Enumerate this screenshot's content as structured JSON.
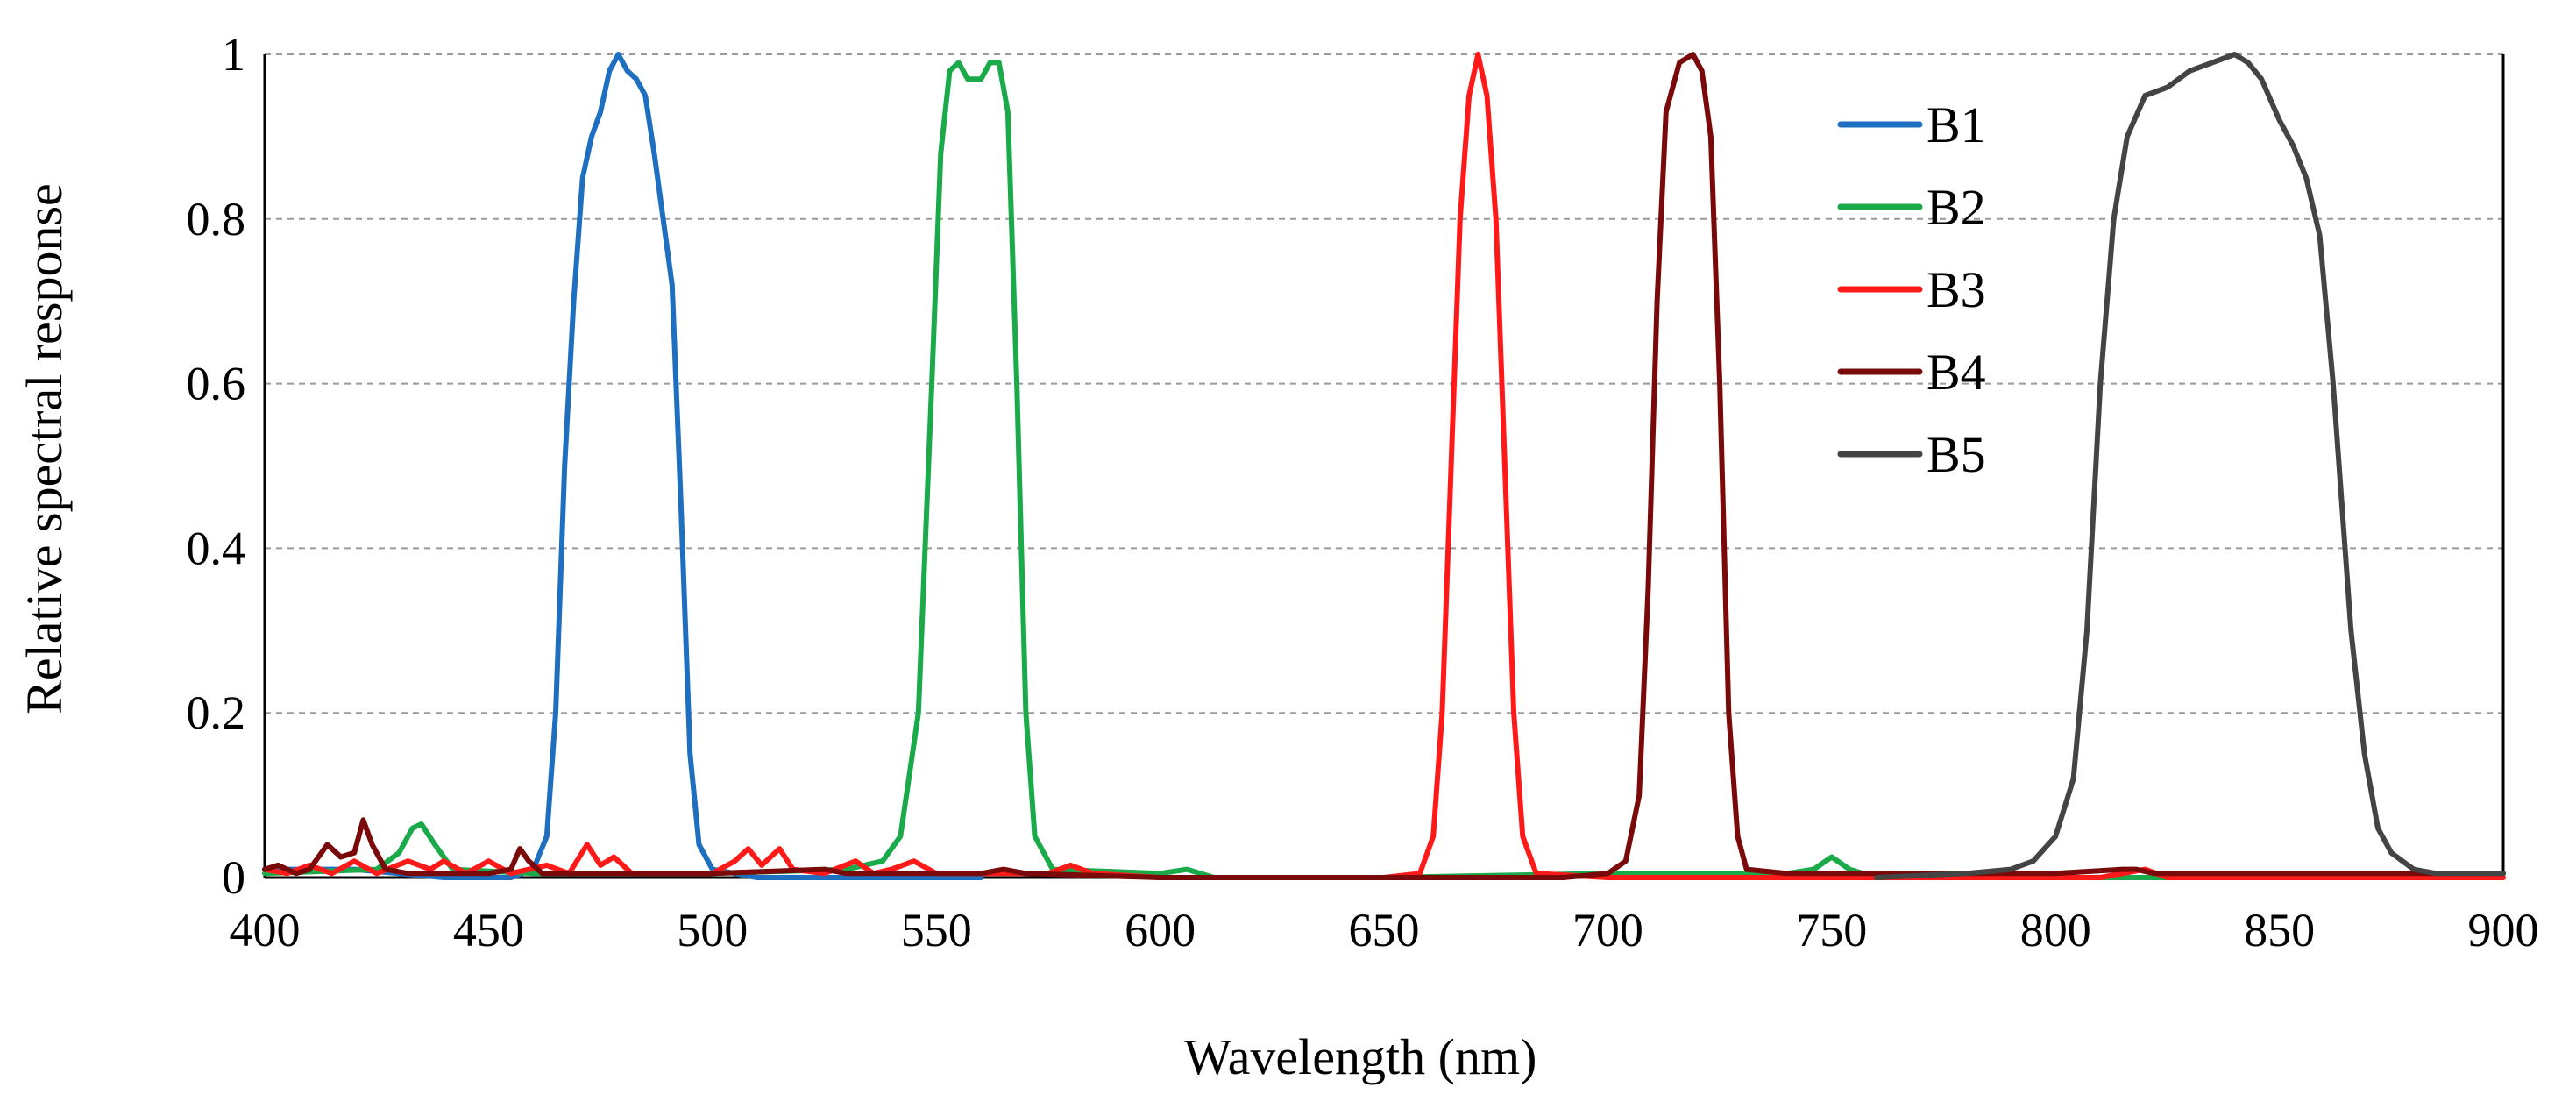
{
  "chart_data": {
    "type": "line",
    "title": "",
    "xlabel": "Wavelength (nm)",
    "ylabel": "Relative spectral response",
    "xlim": [
      400,
      900
    ],
    "ylim": [
      0,
      1
    ],
    "x_ticks": [
      400,
      450,
      500,
      550,
      600,
      650,
      700,
      750,
      800,
      850,
      900
    ],
    "y_ticks": [
      0,
      0.2,
      0.4,
      0.6,
      0.8,
      1
    ],
    "y_tick_labels": [
      "0",
      "0.2",
      "0.4",
      "0.6",
      "0.8",
      "1"
    ],
    "grid": "horizontal dashed",
    "legend_position": "top-right",
    "series": [
      {
        "name": "B1",
        "color": "#1f6fc0",
        "points": [
          [
            400,
            0.01
          ],
          [
            420,
            0.01
          ],
          [
            440,
            0.0
          ],
          [
            455,
            0.0
          ],
          [
            460,
            0.01
          ],
          [
            463,
            0.05
          ],
          [
            465,
            0.2
          ],
          [
            467,
            0.5
          ],
          [
            469,
            0.7
          ],
          [
            471,
            0.85
          ],
          [
            473,
            0.9
          ],
          [
            475,
            0.93
          ],
          [
            477,
            0.98
          ],
          [
            479,
            1.0
          ],
          [
            481,
            0.98
          ],
          [
            483,
            0.97
          ],
          [
            485,
            0.95
          ],
          [
            487,
            0.88
          ],
          [
            489,
            0.8
          ],
          [
            491,
            0.72
          ],
          [
            493,
            0.45
          ],
          [
            495,
            0.15
          ],
          [
            497,
            0.04
          ],
          [
            500,
            0.01
          ],
          [
            510,
            0.0
          ],
          [
            560,
            0.0
          ]
        ]
      },
      {
        "name": "B2",
        "color": "#1aaa4a",
        "points": [
          [
            400,
            0.005
          ],
          [
            425,
            0.01
          ],
          [
            430,
            0.03
          ],
          [
            433,
            0.06
          ],
          [
            435,
            0.065
          ],
          [
            438,
            0.04
          ],
          [
            442,
            0.01
          ],
          [
            460,
            0.005
          ],
          [
            500,
            0.005
          ],
          [
            530,
            0.01
          ],
          [
            538,
            0.02
          ],
          [
            542,
            0.05
          ],
          [
            546,
            0.2
          ],
          [
            549,
            0.6
          ],
          [
            551,
            0.88
          ],
          [
            553,
            0.98
          ],
          [
            555,
            0.99
          ],
          [
            557,
            0.97
          ],
          [
            560,
            0.97
          ],
          [
            562,
            0.99
          ],
          [
            564,
            0.99
          ],
          [
            566,
            0.93
          ],
          [
            568,
            0.6
          ],
          [
            570,
            0.2
          ],
          [
            572,
            0.05
          ],
          [
            576,
            0.01
          ],
          [
            600,
            0.005
          ],
          [
            606,
            0.01
          ],
          [
            612,
            0.0
          ],
          [
            650,
            0.0
          ],
          [
            700,
            0.005
          ],
          [
            740,
            0.005
          ],
          [
            746,
            0.01
          ],
          [
            750,
            0.025
          ],
          [
            754,
            0.01
          ],
          [
            760,
            0.0
          ],
          [
            800,
            0.0
          ],
          [
            900,
            0.0
          ]
        ]
      },
      {
        "name": "B3",
        "color": "#ff1a1a",
        "points": [
          [
            400,
            0.01
          ],
          [
            405,
            0.005
          ],
          [
            410,
            0.015
          ],
          [
            415,
            0.005
          ],
          [
            420,
            0.02
          ],
          [
            425,
            0.005
          ],
          [
            432,
            0.02
          ],
          [
            437,
            0.01
          ],
          [
            440,
            0.02
          ],
          [
            445,
            0.005
          ],
          [
            450,
            0.02
          ],
          [
            455,
            0.005
          ],
          [
            463,
            0.015
          ],
          [
            468,
            0.005
          ],
          [
            472,
            0.04
          ],
          [
            475,
            0.015
          ],
          [
            478,
            0.025
          ],
          [
            482,
            0.005
          ],
          [
            500,
            0.005
          ],
          [
            505,
            0.02
          ],
          [
            508,
            0.035
          ],
          [
            511,
            0.015
          ],
          [
            515,
            0.035
          ],
          [
            518,
            0.01
          ],
          [
            525,
            0.005
          ],
          [
            532,
            0.02
          ],
          [
            536,
            0.005
          ],
          [
            540,
            0.01
          ],
          [
            545,
            0.02
          ],
          [
            550,
            0.005
          ],
          [
            575,
            0.005
          ],
          [
            580,
            0.015
          ],
          [
            585,
            0.005
          ],
          [
            600,
            0.0
          ],
          [
            650,
            0.0
          ],
          [
            658,
            0.005
          ],
          [
            661,
            0.05
          ],
          [
            663,
            0.2
          ],
          [
            665,
            0.5
          ],
          [
            667,
            0.8
          ],
          [
            669,
            0.95
          ],
          [
            671,
            1.0
          ],
          [
            673,
            0.95
          ],
          [
            675,
            0.8
          ],
          [
            677,
            0.5
          ],
          [
            679,
            0.2
          ],
          [
            681,
            0.05
          ],
          [
            684,
            0.005
          ],
          [
            700,
            0.0
          ],
          [
            810,
            0.0
          ],
          [
            815,
            0.005
          ],
          [
            820,
            0.01
          ],
          [
            825,
            0.0
          ],
          [
            900,
            0.0
          ]
        ]
      },
      {
        "name": "B4",
        "color": "#7a0a0a",
        "points": [
          [
            400,
            0.01
          ],
          [
            403,
            0.015
          ],
          [
            407,
            0.005
          ],
          [
            410,
            0.01
          ],
          [
            414,
            0.04
          ],
          [
            417,
            0.025
          ],
          [
            420,
            0.03
          ],
          [
            422,
            0.07
          ],
          [
            424,
            0.04
          ],
          [
            427,
            0.01
          ],
          [
            432,
            0.005
          ],
          [
            440,
            0.005
          ],
          [
            450,
            0.005
          ],
          [
            455,
            0.01
          ],
          [
            457,
            0.035
          ],
          [
            459,
            0.02
          ],
          [
            462,
            0.005
          ],
          [
            480,
            0.005
          ],
          [
            500,
            0.005
          ],
          [
            525,
            0.01
          ],
          [
            530,
            0.005
          ],
          [
            560,
            0.005
          ],
          [
            565,
            0.01
          ],
          [
            570,
            0.005
          ],
          [
            600,
            0.0
          ],
          [
            690,
            0.0
          ],
          [
            700,
            0.005
          ],
          [
            704,
            0.02
          ],
          [
            707,
            0.1
          ],
          [
            709,
            0.35
          ],
          [
            711,
            0.7
          ],
          [
            713,
            0.93
          ],
          [
            716,
            0.99
          ],
          [
            719,
            1.0
          ],
          [
            721,
            0.98
          ],
          [
            723,
            0.9
          ],
          [
            725,
            0.6
          ],
          [
            727,
            0.2
          ],
          [
            729,
            0.05
          ],
          [
            731,
            0.01
          ],
          [
            740,
            0.005
          ],
          [
            800,
            0.005
          ],
          [
            815,
            0.01
          ],
          [
            818,
            0.01
          ],
          [
            822,
            0.005
          ],
          [
            840,
            0.005
          ],
          [
            900,
            0.005
          ]
        ]
      },
      {
        "name": "B5",
        "color": "#444444",
        "points": [
          [
            760,
            0.0
          ],
          [
            780,
            0.005
          ],
          [
            790,
            0.01
          ],
          [
            795,
            0.02
          ],
          [
            800,
            0.05
          ],
          [
            804,
            0.12
          ],
          [
            807,
            0.3
          ],
          [
            810,
            0.6
          ],
          [
            813,
            0.8
          ],
          [
            816,
            0.9
          ],
          [
            820,
            0.95
          ],
          [
            825,
            0.96
          ],
          [
            830,
            0.98
          ],
          [
            835,
            0.99
          ],
          [
            840,
            1.0
          ],
          [
            843,
            0.99
          ],
          [
            846,
            0.97
          ],
          [
            850,
            0.92
          ],
          [
            853,
            0.89
          ],
          [
            856,
            0.85
          ],
          [
            859,
            0.78
          ],
          [
            862,
            0.6
          ],
          [
            864,
            0.45
          ],
          [
            866,
            0.3
          ],
          [
            869,
            0.15
          ],
          [
            872,
            0.06
          ],
          [
            875,
            0.03
          ],
          [
            880,
            0.01
          ],
          [
            885,
            0.005
          ],
          [
            900,
            0.005
          ]
        ]
      }
    ]
  }
}
